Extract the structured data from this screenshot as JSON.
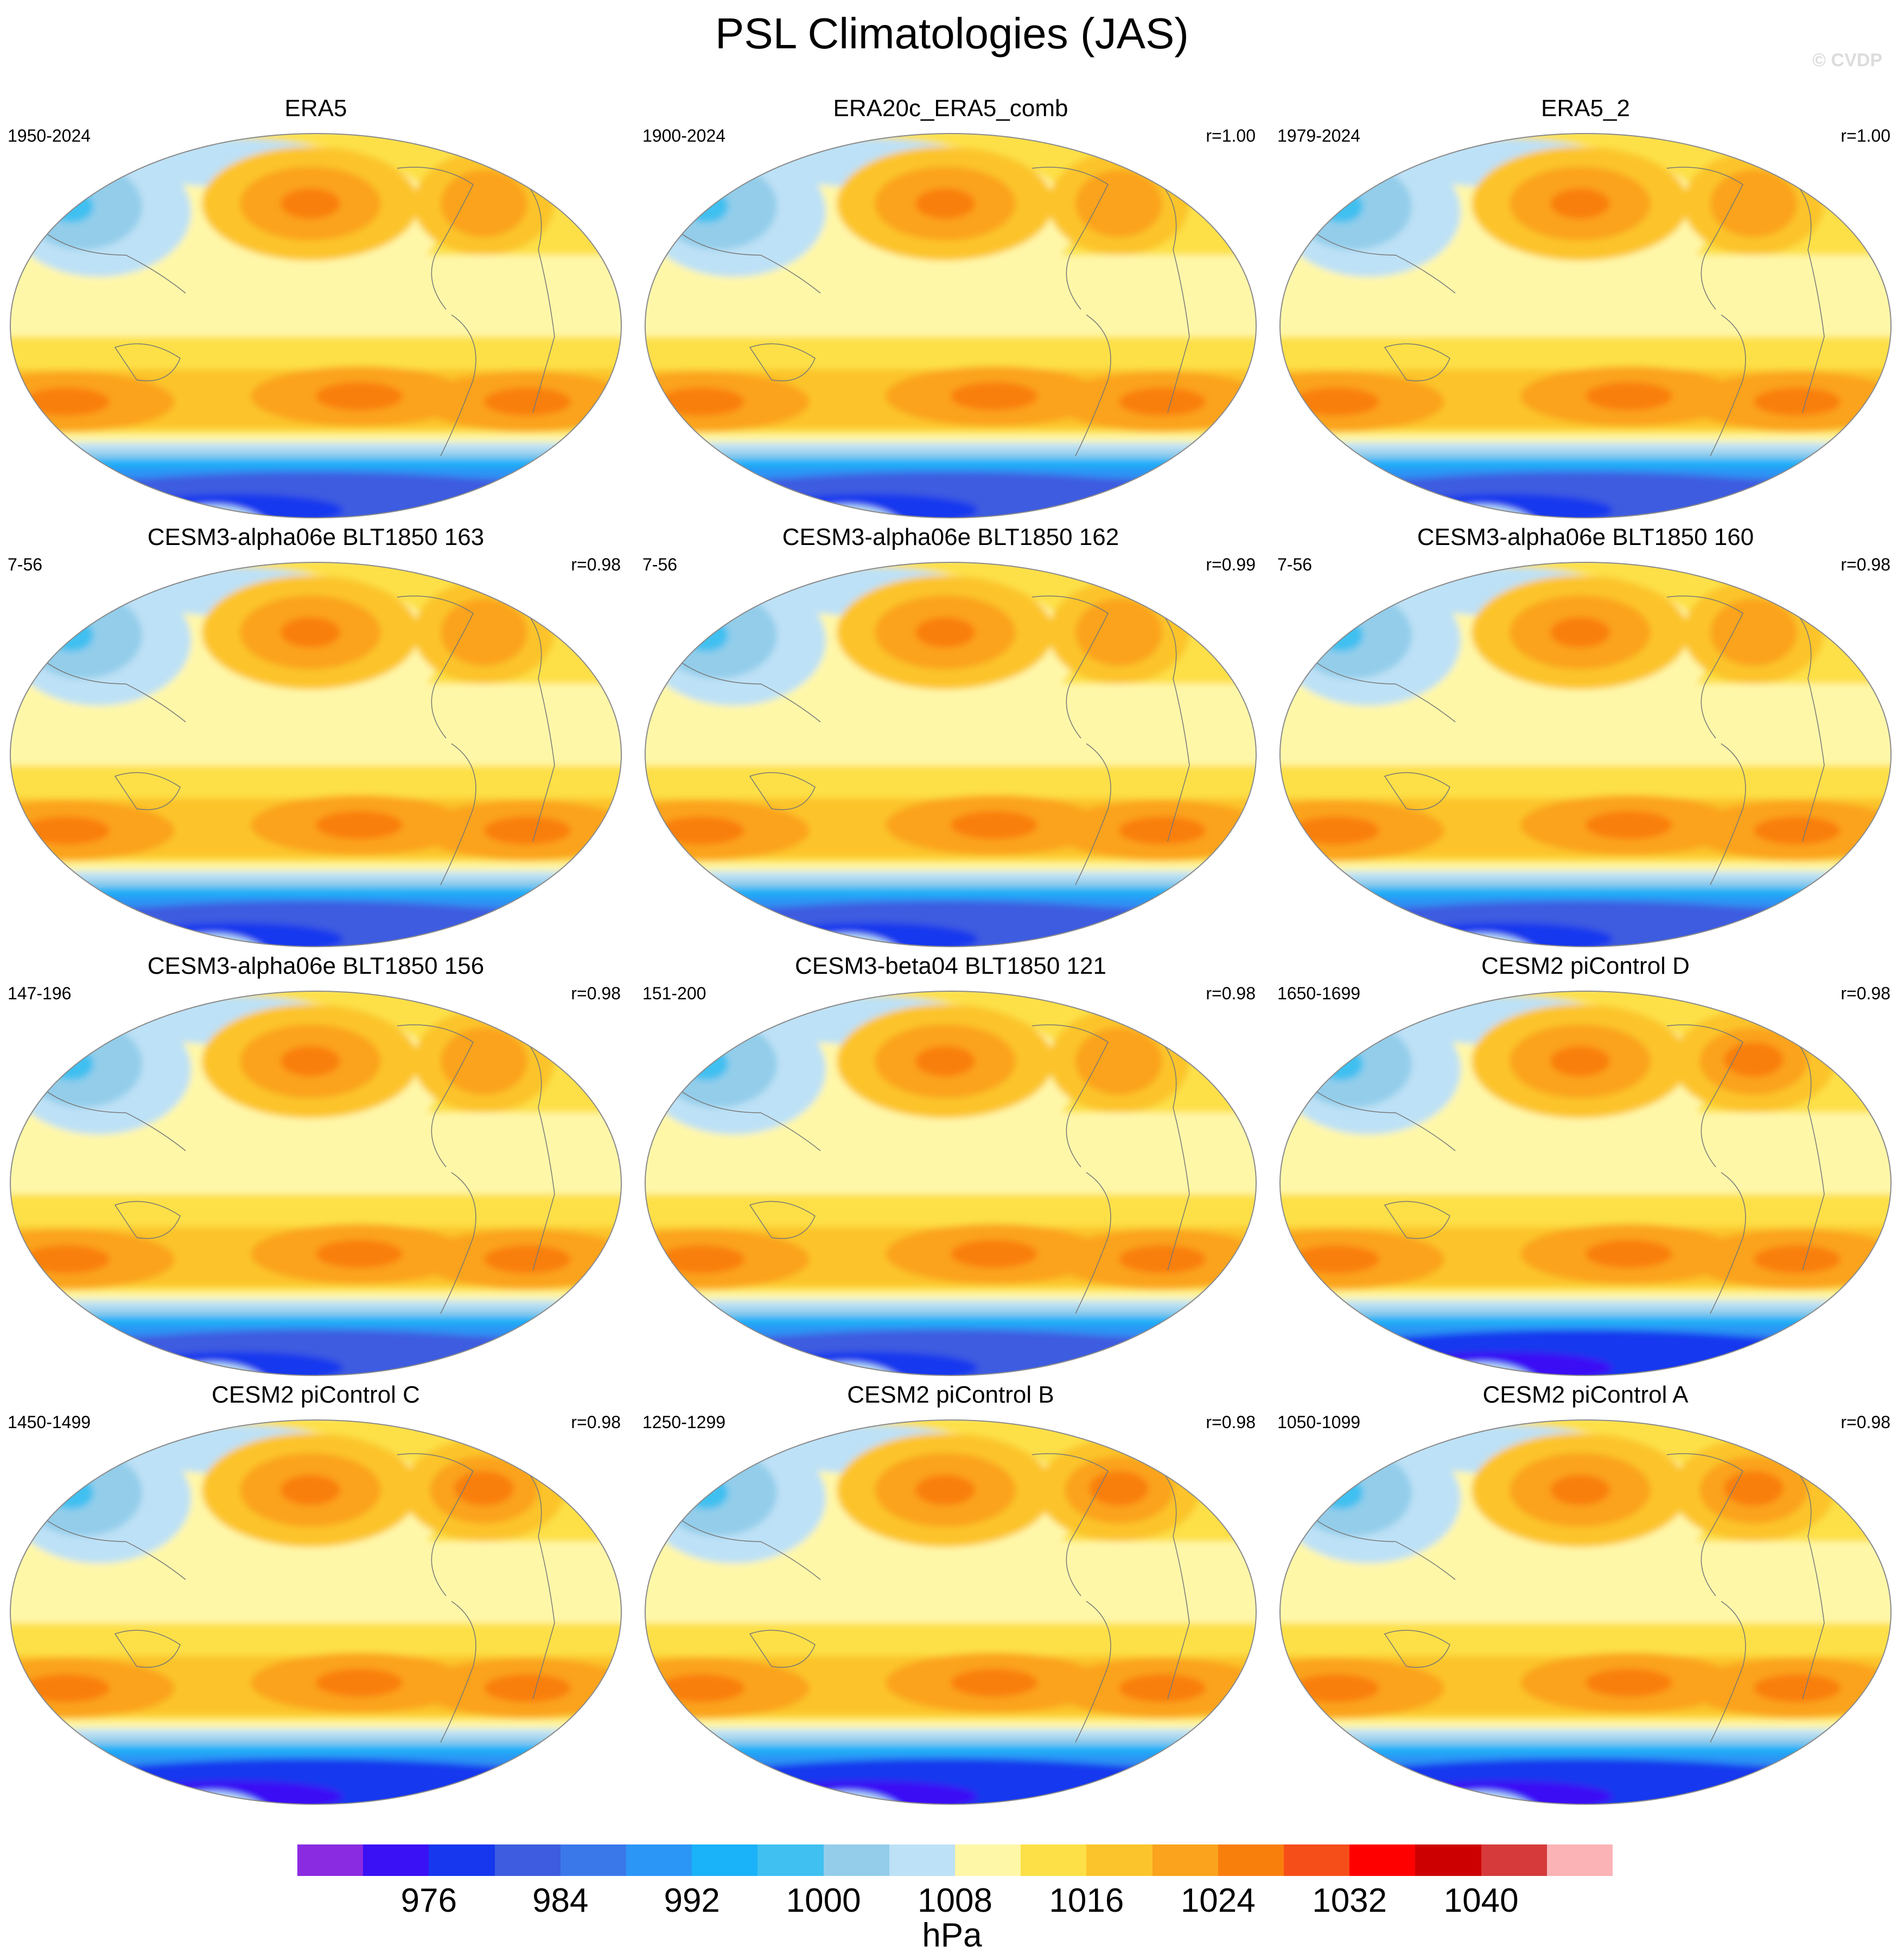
{
  "title": "PSL Climatologies (JAS)",
  "watermark": "© CVDP",
  "colors": {
    "scale": [
      "#8a2be2",
      "#3a10f5",
      "#1637ee",
      "#3d5ce0",
      "#3a78ea",
      "#2b96f5",
      "#1ab2f8",
      "#40c0f0",
      "#93cdea",
      "#bde1f6",
      "#fff7a8",
      "#fde047",
      "#fcc42c",
      "#fba31d",
      "#f97f0d",
      "#f64e19",
      "#ff0000",
      "#cc0000",
      "#d63a3a",
      "#fbb3b6"
    ],
    "coast": "#777777",
    "border": "#8a8a8a"
  },
  "colorbar": {
    "labels": [
      "976",
      "984",
      "992",
      "1000",
      "1008",
      "1016",
      "1024",
      "1032",
      "1040"
    ],
    "units": "hPa"
  },
  "panels": [
    {
      "title": "ERA5",
      "years": "1950-2024",
      "corr": ""
    },
    {
      "title": "ERA20c_ERA5_comb",
      "years": "1900-2024",
      "corr": "r=1.00"
    },
    {
      "title": "ERA5_2",
      "years": "1979-2024",
      "corr": "r=1.00"
    },
    {
      "title": "CESM3-alpha06e BLT1850 163",
      "years": "7-56",
      "corr": "r=0.98"
    },
    {
      "title": "CESM3-alpha06e BLT1850 162",
      "years": "7-56",
      "corr": "r=0.99"
    },
    {
      "title": "CESM3-alpha06e BLT1850 160",
      "years": "7-56",
      "corr": "r=0.98"
    },
    {
      "title": "CESM3-alpha06e BLT1850 156",
      "years": "147-196",
      "corr": "r=0.98"
    },
    {
      "title": "CESM3-beta04 BLT1850 121",
      "years": "151-200",
      "corr": "r=0.98"
    },
    {
      "title": "CESM2 piControl D",
      "years": "1650-1699",
      "corr": "r=0.98"
    },
    {
      "title": "CESM2 piControl C",
      "years": "1450-1499",
      "corr": "r=0.98"
    },
    {
      "title": "CESM2 piControl B",
      "years": "1250-1299",
      "corr": "r=0.98"
    },
    {
      "title": "CESM2 piControl A",
      "years": "1050-1099",
      "corr": "r=0.98"
    }
  ]
}
